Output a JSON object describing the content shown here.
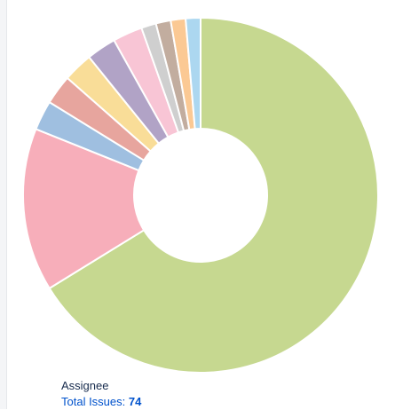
{
  "chart_data": {
    "type": "pie",
    "title": "",
    "legend": "none",
    "slices": [
      {
        "value": 49,
        "color": "#c6d890"
      },
      {
        "value": 11,
        "color": "#f7aeba"
      },
      {
        "value": 2,
        "color": "#9fbfe0"
      },
      {
        "value": 2,
        "color": "#e7a59e"
      },
      {
        "value": 2,
        "color": "#f9dd98"
      },
      {
        "value": 2,
        "color": "#b1a3c6"
      },
      {
        "value": 2,
        "color": "#f8c5d5"
      },
      {
        "value": 1,
        "color": "#cfcfcf"
      },
      {
        "value": 1,
        "color": "#c2ad9f"
      },
      {
        "value": 1,
        "color": "#fbc994"
      },
      {
        "value": 1,
        "color": "#acd7f0"
      }
    ]
  },
  "footer": {
    "label": "Assignee",
    "total_prefix": "Total Issues:",
    "total_value": "74"
  }
}
